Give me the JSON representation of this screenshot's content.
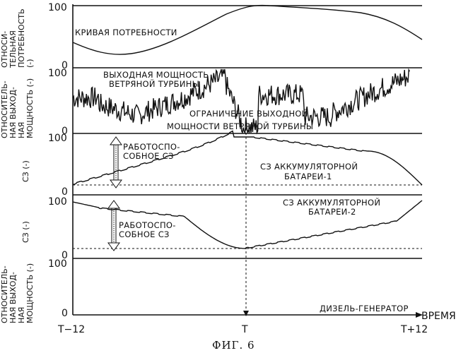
{
  "panels": {
    "demand": {
      "ylabel": [
        "ОТНОСИ-",
        "ТЕЛЬНАЯ",
        "ПОТРЕБНОСТЬ",
        "(-)"
      ],
      "tick_top": "100",
      "tick_bottom": "0",
      "curve_label": "КРИВАЯ ПОТРЕБНОСТИ"
    },
    "wind": {
      "ylabel": [
        "ОТНОСИТЕЛЬ-",
        "НАЯ ВЫХОД-",
        "НАЯ",
        "МОЩНОСТЬ (-)"
      ],
      "tick_top": "100",
      "tick_bottom": "0",
      "label_output": [
        "ВЫХОДНАЯ МОЩНОСТЬ",
        "ВЕТРЯНОЙ ТУРБИНЫ"
      ],
      "label_limit": [
        "ОГРАНИЧЕНИЕ ВЫХОДНОЙ",
        "МОЩНОСТИ ВЕТРЯНОЙ ТУРБИНЫ"
      ]
    },
    "battery1": {
      "ylabel": "СЗ (-)",
      "tick_top": "100",
      "tick_bottom": "0",
      "label_usable": [
        "РАБОТОСПО-",
        "СОБНОЕ СЗ"
      ],
      "label_battery": [
        "СЗ АККУМУЛЯТОРНОЙ",
        "БАТАРЕИ-1"
      ]
    },
    "battery2": {
      "ylabel": "СЗ (-)",
      "tick_top": "100",
      "tick_bottom": "0",
      "label_usable": [
        "РАБОТОСПО-",
        "СОБНОЕ СЗ"
      ],
      "label_battery": [
        "СЗ АККУМУЛЯТОРНОЙ",
        "БАТАРЕИ-2"
      ]
    },
    "diesel": {
      "ylabel": [
        "ОТНОСИТЕЛЬ-",
        "НАЯ ВЫХОД-",
        "НАЯ",
        "МОЩНОСТЬ (-)"
      ],
      "tick_top": "100",
      "tick_bottom": "0",
      "label": "ДИЗЕЛЬ-ГЕНЕРАТОР"
    }
  },
  "x_axis": {
    "label": "ВРЕМЯ",
    "ticks": [
      "T−12",
      "T",
      "T+12"
    ]
  },
  "caption": "ФИГ. 6"
}
